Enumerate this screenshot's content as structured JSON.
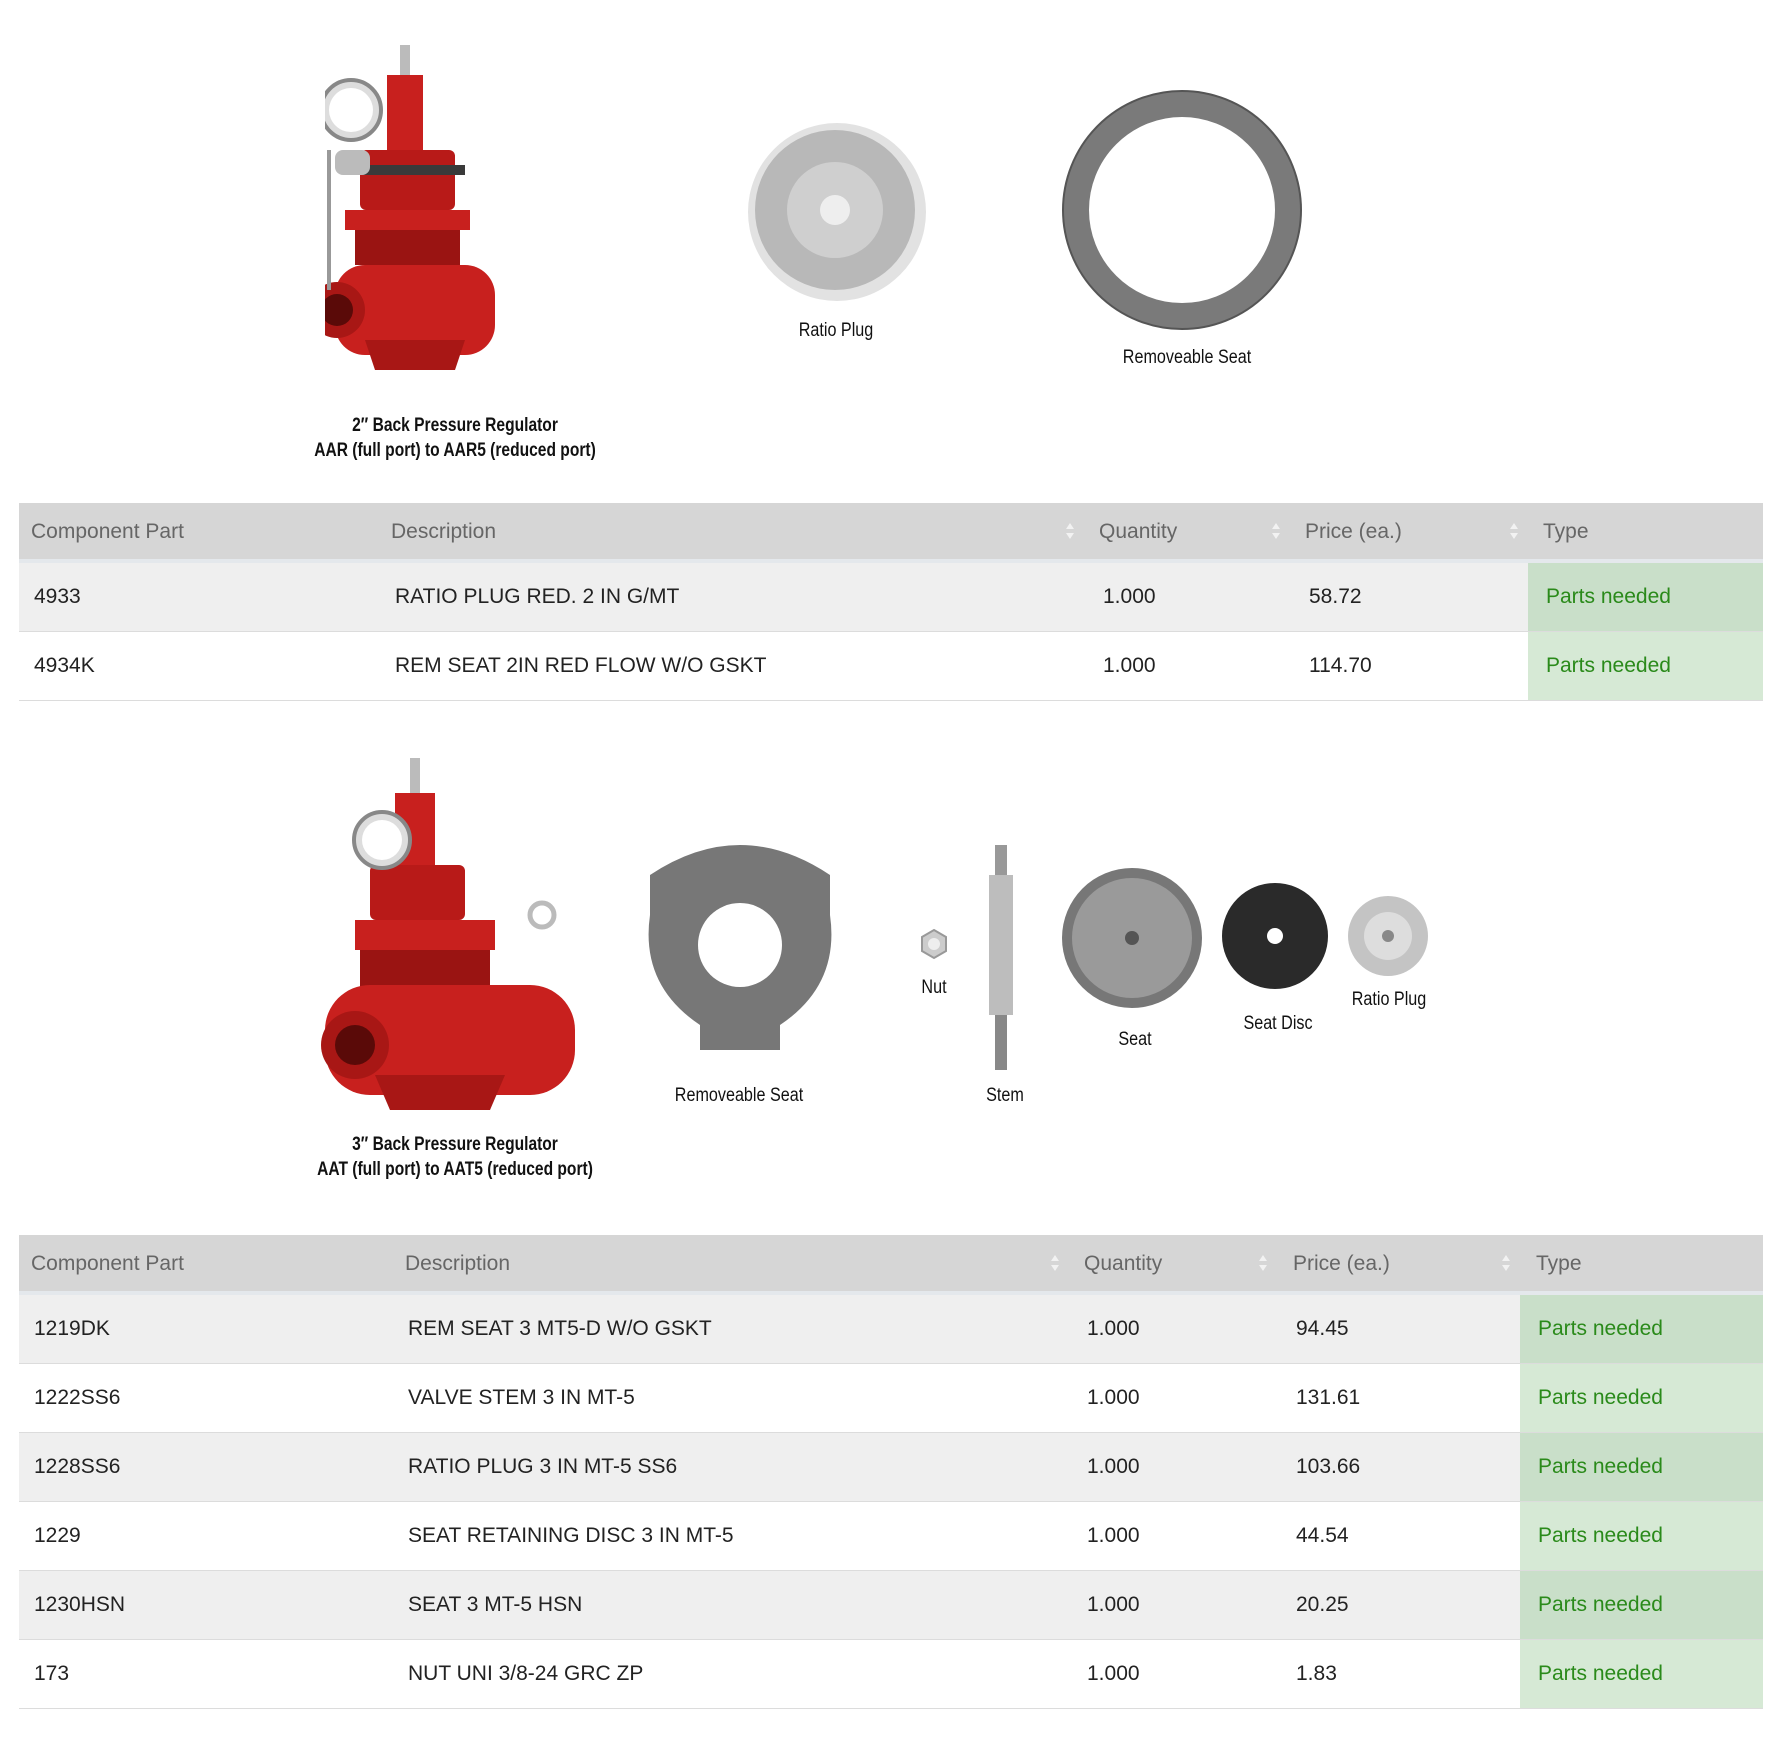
{
  "section1": {
    "caption_line1": "2″ Back Pressure Regulator",
    "caption_line2": "AAR (full port) to AAR5 (reduced port)",
    "part_labels": [
      "Ratio Plug",
      "Removeable Seat"
    ],
    "table": {
      "headers": [
        "Component Part",
        "Description",
        "Quantity",
        "Price (ea.)",
        "Type"
      ],
      "rows": [
        {
          "part": "4933",
          "description": "RATIO PLUG RED. 2 IN G/MT",
          "quantity": "1.000",
          "price": "58.72",
          "type": "Parts needed"
        },
        {
          "part": "4934K",
          "description": "REM SEAT 2IN RED FLOW W/O GSKT",
          "quantity": "1.000",
          "price": "114.70",
          "type": "Parts needed"
        }
      ]
    }
  },
  "section2": {
    "caption_line1": "3″ Back Pressure Regulator",
    "caption_line2": "AAT (full port) to AAT5 (reduced port)",
    "part_labels": [
      "Removeable Seat",
      "Nut",
      "Stem",
      "Seat",
      "Seat Disc",
      "Ratio Plug"
    ],
    "table": {
      "headers": [
        "Component Part",
        "Description",
        "Quantity",
        "Price (ea.)",
        "Type"
      ],
      "rows": [
        {
          "part": "1219DK",
          "description": "REM SEAT 3 MT5-D W/O GSKT",
          "quantity": "1.000",
          "price": "94.45",
          "type": "Parts needed"
        },
        {
          "part": "1222SS6",
          "description": "VALVE STEM 3 IN MT-5",
          "quantity": "1.000",
          "price": "131.61",
          "type": "Parts needed"
        },
        {
          "part": "1228SS6",
          "description": "RATIO PLUG 3 IN MT-5 SS6",
          "quantity": "1.000",
          "price": "103.66",
          "type": "Parts needed"
        },
        {
          "part": "1229",
          "description": "SEAT RETAINING DISC 3 IN MT-5",
          "quantity": "1.000",
          "price": "44.54",
          "type": "Parts needed"
        },
        {
          "part": "1230HSN",
          "description": "SEAT 3 MT-5 HSN",
          "quantity": "1.000",
          "price": "20.25",
          "type": "Parts needed"
        },
        {
          "part": "173",
          "description": "NUT UNI 3/8-24 GRC ZP",
          "quantity": "1.000",
          "price": "1.83",
          "type": "Parts needed"
        }
      ]
    }
  },
  "colors": {
    "type_text": "#2a8a1a",
    "type_cell": "#c9dfc9",
    "header_bg": "#d6d6d6",
    "regulator_red": "#c8201e"
  }
}
